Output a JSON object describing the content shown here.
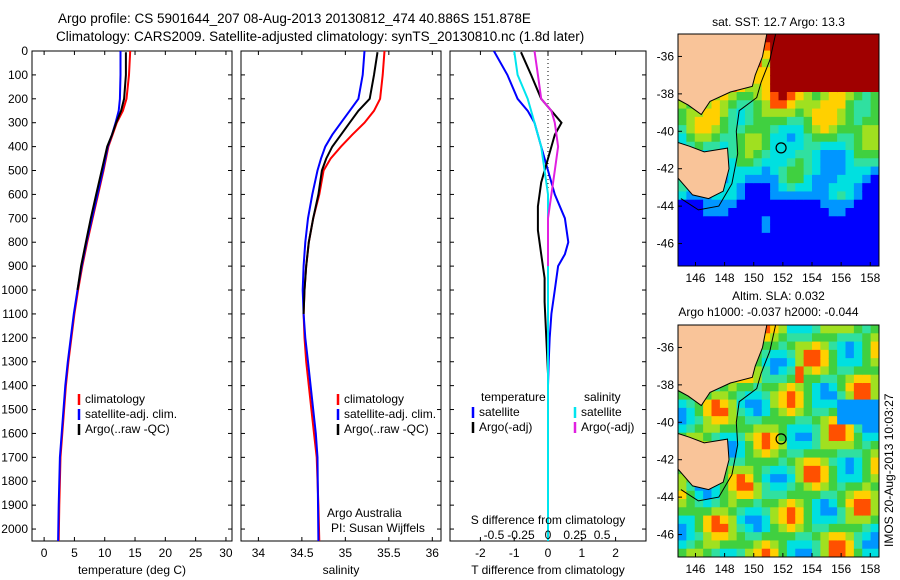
{
  "header": {
    "line1": "Argo profile: CS 5901644_207 08-Aug-2013 20130812_474 40.886S 151.878E",
    "line2": "Climatology: CARS2009. Satellite-adjusted climatology: synTS_20130810.nc (1.8d later)"
  },
  "credits": {
    "org": "Argo Australia",
    "pi": "PI: Susan Wijffels",
    "side": "IMOS 20-Aug-2013 10:03:27"
  },
  "colors": {
    "climatology": "#ff0000",
    "satellite": "#0000ff",
    "argo": "#000000",
    "salinity_satellite": "#00e5ee",
    "salinity_argo": "#e020e0",
    "land": "#f9c499"
  },
  "chart_data": [
    {
      "type": "line",
      "xlabel": "temperature (deg C)",
      "xlim": [
        -2,
        31
      ],
      "ylim": [
        2050,
        0
      ],
      "yticks": [
        0,
        100,
        200,
        300,
        400,
        500,
        600,
        700,
        800,
        900,
        1000,
        1100,
        1200,
        1300,
        1400,
        1500,
        1600,
        1700,
        1800,
        1900,
        2000
      ],
      "xticks": [
        0,
        5,
        10,
        15,
        20,
        25,
        30
      ],
      "legend": [
        "climatology",
        "satellite-adj. clim.",
        "Argo(..raw -QC)"
      ],
      "series": [
        {
          "name": "climatology",
          "color": "#ff0000",
          "x": [
            14.2,
            14.0,
            13.6,
            13.0,
            12.0,
            11.3,
            10.6,
            9.8,
            8.9,
            8.0,
            7.1,
            6.3,
            5.6,
            5.0,
            4.5,
            4.0,
            3.6,
            3.3,
            3.0,
            2.7,
            2.5,
            2.4
          ],
          "y": [
            0,
            100,
            200,
            250,
            300,
            350,
            400,
            500,
            600,
            700,
            800,
            900,
            1000,
            1100,
            1200,
            1300,
            1400,
            1500,
            1600,
            1700,
            1900,
            2050
          ]
        },
        {
          "name": "satellite-adj. clim.",
          "color": "#0000ff",
          "x": [
            12.6,
            12.6,
            12.5,
            12.3,
            11.8,
            11.2,
            10.5,
            9.7,
            8.8,
            7.9,
            7.0,
            6.2,
            5.5,
            4.9,
            4.4,
            3.9,
            3.5,
            3.2,
            2.9,
            2.6,
            2.4,
            2.3
          ],
          "y": [
            0,
            100,
            200,
            250,
            300,
            350,
            400,
            500,
            600,
            700,
            800,
            900,
            1000,
            1100,
            1200,
            1300,
            1400,
            1500,
            1600,
            1700,
            1900,
            2050
          ]
        },
        {
          "name": "Argo(..raw -QC)",
          "color": "#000000",
          "x": [
            13.5,
            13.5,
            13.2,
            12.7,
            11.9,
            11.2,
            10.4,
            9.5,
            8.6,
            7.7,
            6.9,
            6.1,
            5.5
          ],
          "y": [
            5,
            100,
            200,
            250,
            300,
            350,
            400,
            500,
            600,
            700,
            800,
            900,
            1000
          ]
        }
      ]
    },
    {
      "type": "line",
      "xlabel": "salinity",
      "xlim": [
        33.8,
        36.1
      ],
      "ylim": [
        2050,
        0
      ],
      "xticks": [
        34,
        34.5,
        35,
        35.5,
        36
      ],
      "legend": [
        "climatology",
        "satellite-adj. clim.",
        "Argo(..raw -QC)"
      ],
      "series": [
        {
          "name": "climatology",
          "color": "#ff0000",
          "x": [
            35.45,
            35.43,
            35.4,
            35.33,
            35.22,
            35.08,
            34.95,
            34.83,
            34.75,
            34.7,
            34.63,
            34.58,
            34.55,
            34.53,
            34.52,
            34.53,
            34.55,
            34.58,
            34.61,
            34.64,
            34.67,
            34.69,
            34.7
          ],
          "y": [
            0,
            100,
            200,
            250,
            300,
            350,
            400,
            450,
            500,
            600,
            700,
            800,
            900,
            1000,
            1100,
            1200,
            1300,
            1400,
            1500,
            1600,
            1700,
            1900,
            2050
          ]
        },
        {
          "name": "satellite-adj. clim.",
          "color": "#0000ff",
          "x": [
            35.22,
            35.2,
            35.15,
            35.05,
            34.95,
            34.85,
            34.77,
            34.72,
            34.68,
            34.62,
            34.57,
            34.54,
            34.52,
            34.51,
            34.52,
            34.54,
            34.57,
            34.6,
            34.63,
            34.66,
            34.68,
            34.69
          ],
          "y": [
            0,
            100,
            200,
            250,
            300,
            350,
            400,
            450,
            500,
            600,
            700,
            800,
            900,
            1000,
            1100,
            1200,
            1300,
            1400,
            1500,
            1600,
            1700,
            2050
          ]
        },
        {
          "name": "Argo(..raw -QC)",
          "color": "#000000",
          "x": [
            35.37,
            35.33,
            35.28,
            35.15,
            35.05,
            34.95,
            34.85,
            34.78,
            34.73,
            34.69,
            34.63,
            34.58,
            34.55,
            34.53,
            34.52
          ],
          "y": [
            5,
            100,
            200,
            250,
            300,
            350,
            400,
            450,
            500,
            600,
            700,
            800,
            900,
            1000,
            1100
          ]
        }
      ]
    },
    {
      "type": "line",
      "xlabel": "T difference from climatology",
      "xlabel2": "S difference from climatology",
      "xlim": [
        -2.9,
        2.9
      ],
      "ylim": [
        2050,
        0
      ],
      "xticks_T": [
        -2,
        -1,
        0,
        1,
        2
      ],
      "xticks_S": [
        "-0.5",
        "-0.25",
        "0",
        "0.25",
        "0.5"
      ],
      "legend_T": {
        "title": "temperature",
        "items": [
          "satellite",
          "Argo(-adj)"
        ]
      },
      "legend_S": {
        "title": "salinity",
        "items": [
          "satellite",
          "Argo(-adj)"
        ]
      },
      "series": [
        {
          "name": "satellite",
          "color": "#0000ff",
          "x": [
            -1.6,
            -1.2,
            -0.9,
            -0.6,
            -0.4,
            -0.2,
            0.0,
            0.2,
            0.5,
            0.6,
            0.5,
            0.3,
            0.2,
            0.1,
            0.05,
            0.02,
            0.0,
            0.0,
            0.0,
            0.0
          ],
          "y": [
            0,
            100,
            200,
            250,
            300,
            400,
            500,
            600,
            700,
            800,
            850,
            900,
            1000,
            1100,
            1200,
            1300,
            1400,
            1600,
            1800,
            2050
          ]
        },
        {
          "name": "Argo(-adj)",
          "color": "#000000",
          "x": [
            -0.8,
            -0.5,
            -0.2,
            0.1,
            0.4,
            0.2,
            0.0,
            -0.2,
            -0.3,
            -0.3,
            -0.2,
            -0.1,
            -0.1,
            -0.05,
            0.0
          ],
          "y": [
            5,
            100,
            200,
            250,
            300,
            350,
            450,
            550,
            650,
            750,
            850,
            950,
            1050,
            1200,
            1350
          ]
        },
        {
          "name": "salinity satellite",
          "color": "#00e5ee",
          "x": [
            -1.0,
            -0.9,
            -0.6,
            -0.4,
            -0.2,
            -0.1,
            0.0,
            0.0,
            0.0,
            0.0
          ],
          "y": [
            0,
            100,
            200,
            300,
            400,
            500,
            600,
            800,
            1200,
            2050
          ]
        },
        {
          "name": "salinity Argo(-adj)",
          "color": "#e020e0",
          "x": [
            -0.4,
            -0.3,
            -0.2,
            0.1,
            0.2,
            0.3,
            0.2,
            0.1,
            0.0,
            0.0,
            0.0
          ],
          "y": [
            0,
            100,
            200,
            250,
            300,
            400,
            500,
            600,
            700,
            800,
            900
          ]
        }
      ]
    },
    {
      "type": "heatmap",
      "title": "sat. SST: 12.7  Argo: 13.3",
      "xticks": [
        146,
        148,
        150,
        152,
        154,
        156,
        158
      ],
      "yticks": [
        -36,
        -38,
        -40,
        -42,
        -44,
        -46
      ],
      "xlim": [
        144.8,
        158.6
      ],
      "ylim": [
        -47.2,
        -34.8
      ],
      "marker": {
        "lon": 151.878,
        "lat": -40.886
      }
    },
    {
      "type": "heatmap",
      "title": "Altim. SLA: 0.032",
      "subtitle": "Argo h1000: -0.037 h2000: -0.044",
      "xticks": [
        146,
        148,
        150,
        152,
        154,
        156,
        158
      ],
      "yticks": [
        -36,
        -38,
        -40,
        -42,
        -44,
        -46
      ],
      "xlim": [
        144.8,
        158.6
      ],
      "ylim": [
        -47.2,
        -34.8
      ],
      "marker": {
        "lon": 151.878,
        "lat": -40.886
      }
    }
  ]
}
